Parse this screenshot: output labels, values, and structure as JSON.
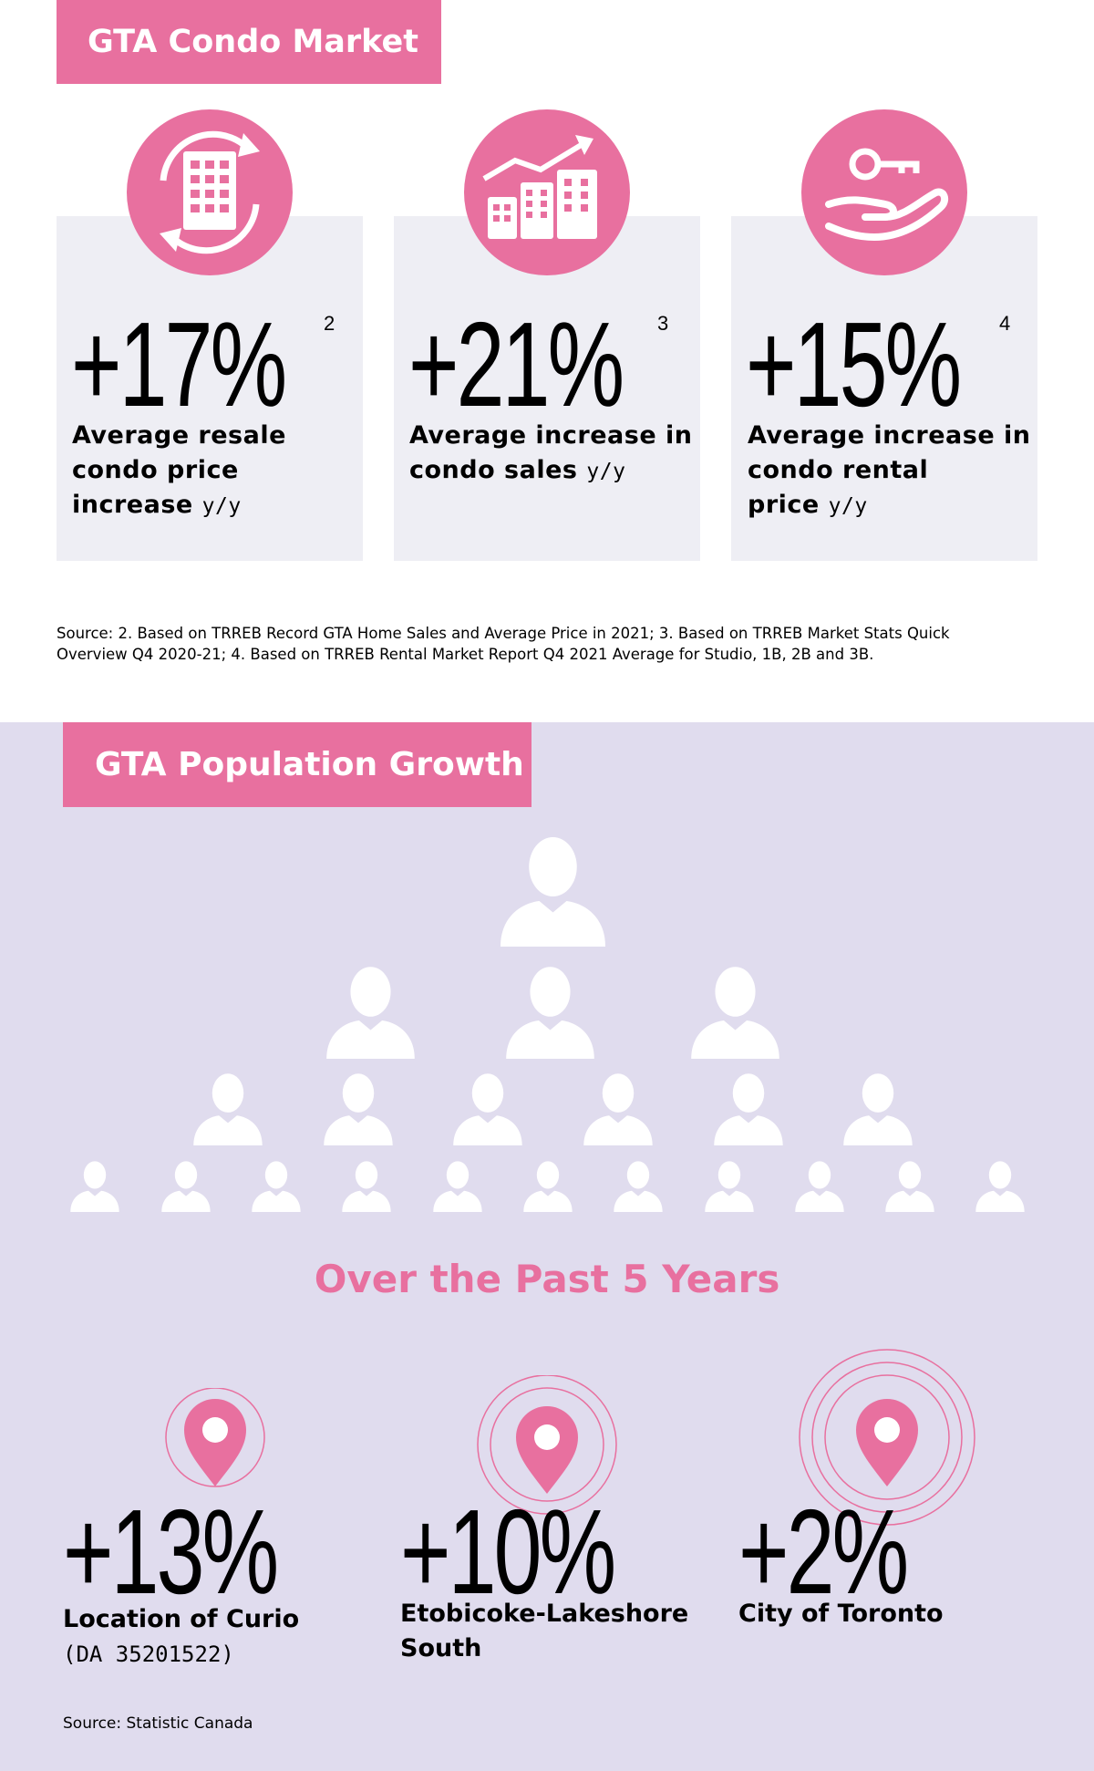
{
  "market": {
    "title": "GTA Condo Market",
    "stats": [
      {
        "value": "+17%",
        "note": "2",
        "line1": "Average resale",
        "line2": "condo price",
        "line3": "increase",
        "suffix": "y/y",
        "icon": "building-cycle-icon"
      },
      {
        "value": "+21%",
        "note": "3",
        "line1": "Average increase in",
        "line2": "condo sales",
        "line3": "",
        "suffix": "y/y",
        "icon": "growth-buildings-icon"
      },
      {
        "value": "+15%",
        "note": "4",
        "line1": "Average increase in",
        "line2": "condo rental",
        "line3": "price",
        "suffix": "y/y",
        "icon": "key-hand-icon"
      }
    ],
    "source_line1": "Source: 2. Based on TRREB Record GTA Home Sales and Average Price in 2021; 3. Based on TRREB Market Stats Quick",
    "source_line2": "Overview Q4 2020-21; 4. Based on TRREB Rental Market Report Q4 2021 Average for Studio, 1B, 2B and 3B."
  },
  "population": {
    "title": "GTA Population Growth",
    "subtitle": "Over the Past 5 Years",
    "stats": [
      {
        "value": "+13%",
        "line1": "Location of Curio",
        "line2": "(DA 35201522)",
        "icon": "location-pin-icon"
      },
      {
        "value": "+10%",
        "line1": "Etobicoke-Lakeshore",
        "line2": "South",
        "icon": "location-pin-icon"
      },
      {
        "value": "+2%",
        "line1": "City of Toronto",
        "line2": "",
        "icon": "location-pin-icon"
      }
    ],
    "source": "Source: Statistic Canada"
  },
  "colors": {
    "accent": "#e8709f",
    "card": "#eeeef4",
    "section": "#e0dcee"
  }
}
